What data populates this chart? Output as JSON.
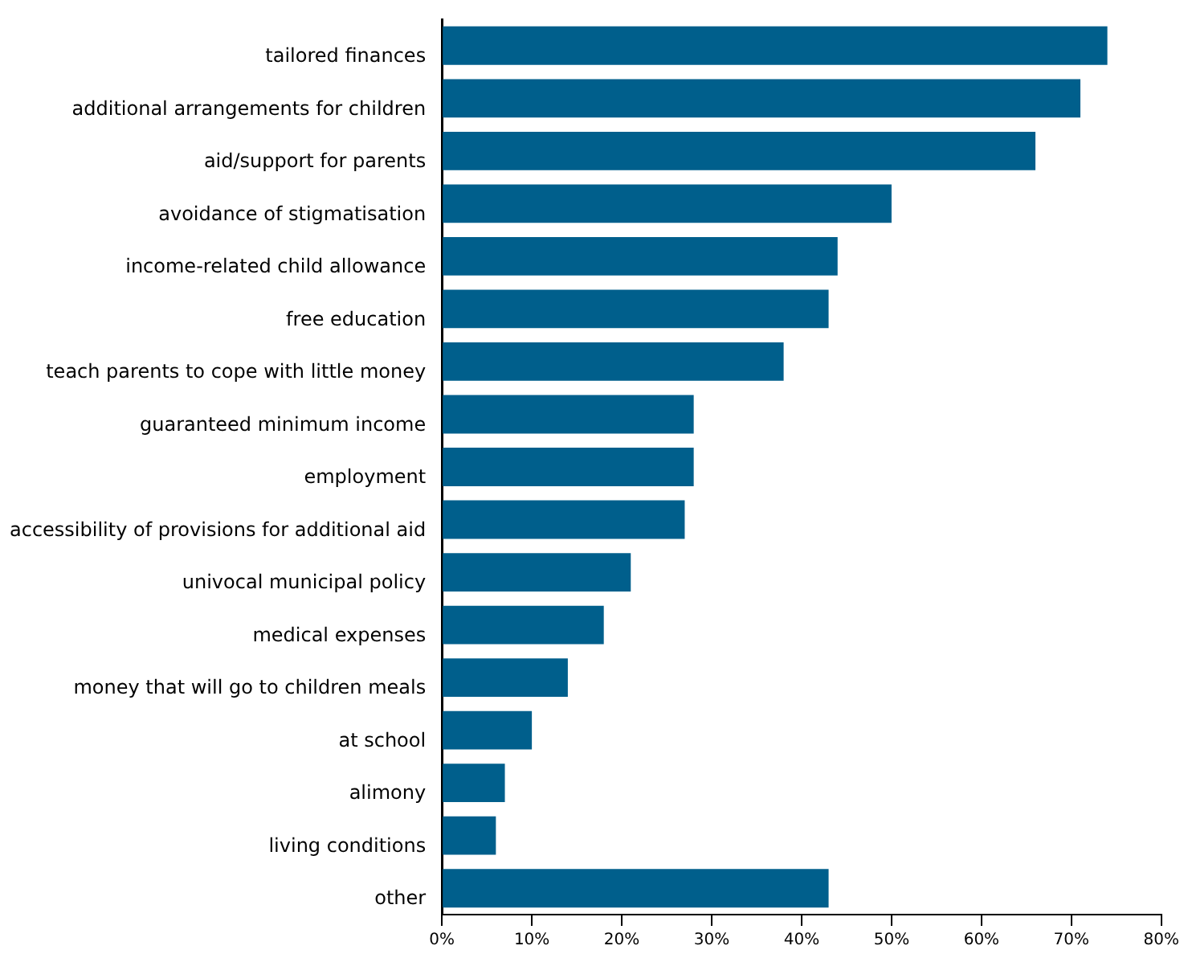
{
  "chart_data": {
    "type": "bar",
    "orientation": "horizontal",
    "categories": [
      "tailored finances",
      "additional arrangements for children",
      "aid/support for parents",
      "avoidance of stigmatisation",
      "income-related child allowance",
      "free education",
      "teach parents to cope with little money",
      "guaranteed minimum income",
      "employment",
      "accessibility of provisions for additional aid",
      "univocal municipal policy",
      "medical expenses",
      "money that will go to children meals",
      "at school",
      "alimony",
      "living conditions",
      "other"
    ],
    "values": [
      74,
      71,
      66,
      50,
      44,
      43,
      38,
      28,
      28,
      27,
      21,
      18,
      14,
      10,
      7,
      6,
      43
    ],
    "color": "#005f8c",
    "xlim": [
      0,
      80
    ],
    "xticks": [
      {
        "value": 0,
        "label": "0%"
      },
      {
        "value": 10,
        "label": "10%"
      },
      {
        "value": 20,
        "label": "20%"
      },
      {
        "value": 30,
        "label": "30%"
      },
      {
        "value": 40,
        "label": "40%"
      },
      {
        "value": 50,
        "label": "50%"
      },
      {
        "value": 60,
        "label": "60%"
      },
      {
        "value": 70,
        "label": "70%"
      },
      {
        "value": 80,
        "label": "80%"
      }
    ],
    "grid": false,
    "legend": false
  }
}
